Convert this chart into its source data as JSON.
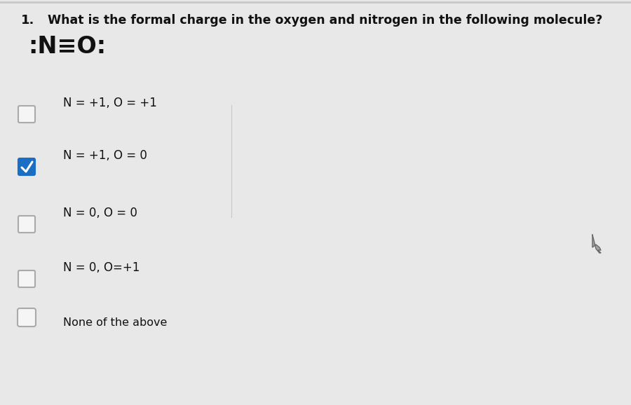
{
  "background_color": "#e8e8e8",
  "content_bg": "#f0f0f0",
  "question_number": "1.",
  "question_text": "What is the formal charge in the oxygen and nitrogen in the following molecule?",
  "molecule": ":N≡O:",
  "options": [
    {
      "label": "N = +1, O = +1",
      "checked": false
    },
    {
      "label": "N = +1, O = 0",
      "checked": true
    },
    {
      "label": "N = 0, O = 0",
      "checked": false
    },
    {
      "label": "N = 0, O=+1",
      "checked": false
    },
    {
      "label": "None of the above",
      "checked": false
    }
  ],
  "checkbox_color_checked": "#1a6fc4",
  "checkbox_color_unchecked": "#f5f5f5",
  "checkbox_border_unchecked": "#aaaaaa",
  "checkmark_color": "#ffffff",
  "text_color": "#111111",
  "question_fontsize": 12.5,
  "molecule_fontsize": 24,
  "option_fontsize": 12,
  "number_fontsize": 13,
  "none_fontsize": 11.5,
  "top_bar_color": "#c8c8c8",
  "divider_color": "#c8c8c8",
  "cursor_color": "#666666"
}
